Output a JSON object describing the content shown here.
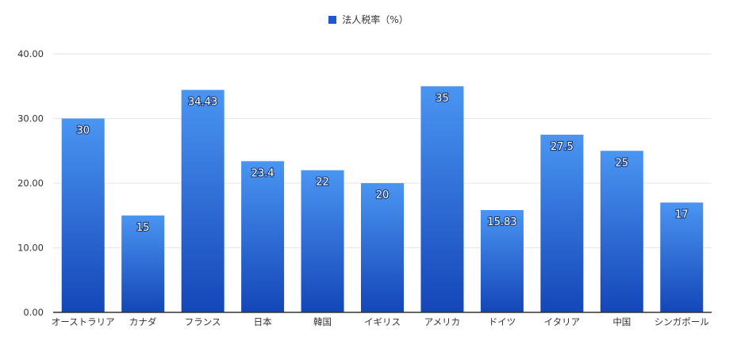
{
  "colors": {
    "bar_top": "#4a95f2",
    "bar_bottom": "#1446b8",
    "legend": "#1d5ad0",
    "grid": "#e6e6e6",
    "axis": "#333333"
  },
  "chart_data": {
    "type": "bar",
    "categories": [
      "オーストラリア",
      "カナダ",
      "フランス",
      "日本",
      "韓国",
      "イギリス",
      "アメリカ",
      "ドイツ",
      "イタリア",
      "中国",
      "シンガポール"
    ],
    "series": [
      {
        "name": "法人税率（%）",
        "values": [
          30,
          15,
          34.43,
          23.4,
          22,
          20,
          35,
          15.83,
          27.5,
          25,
          17
        ]
      }
    ],
    "data_labels": [
      "30",
      "15",
      "34.43",
      "23.4",
      "22",
      "20",
      "35",
      "15.83",
      "27.5",
      "25",
      "17"
    ],
    "yticks": [
      "0.00",
      "10.00",
      "20.00",
      "30.00",
      "40.00"
    ],
    "ylim": [
      0,
      40
    ],
    "grid": true,
    "legend_position": "top-center"
  }
}
